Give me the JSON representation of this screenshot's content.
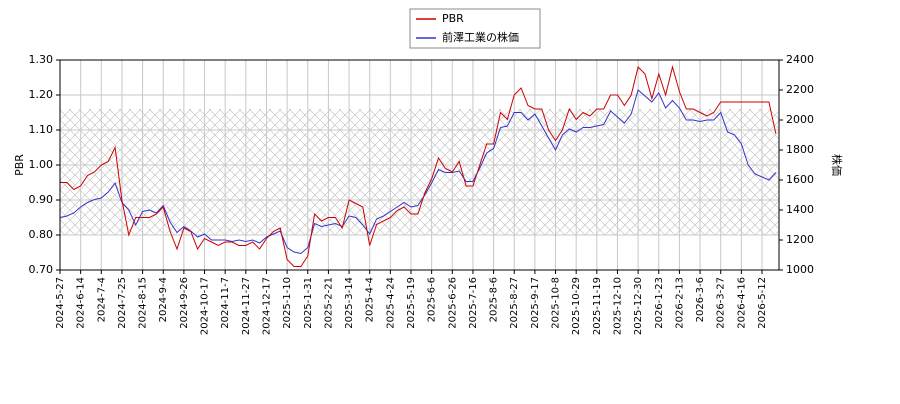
{
  "chart_data": {
    "type": "line",
    "categories": [
      "2024-5-27",
      null,
      null,
      "2024-6-14",
      null,
      null,
      "2024-7-4",
      null,
      null,
      "2024-7-25",
      null,
      null,
      "2024-8-15",
      null,
      null,
      "2024-9-4",
      null,
      null,
      "2024-9-26",
      null,
      null,
      "2024-10-17",
      null,
      null,
      "2024-11-7",
      null,
      null,
      "2024-11-27",
      null,
      null,
      "2024-12-17",
      null,
      null,
      "2025-1-10",
      null,
      null,
      "2025-1-31",
      null,
      null,
      "2025-2-21",
      null,
      null,
      "2025-3-14",
      null,
      null,
      "2025-4-4",
      null,
      null,
      "2025-4-24",
      null,
      null,
      "2025-5-19",
      null,
      null,
      "2025-6-6",
      null,
      null,
      "2025-6-26",
      null,
      null,
      "2025-7-16",
      null,
      null,
      "2025-8-6",
      null,
      null,
      "2025-8-27",
      null,
      null,
      "2025-9-17",
      null,
      null,
      "2025-10-8",
      null,
      null,
      "2025-10-29",
      null,
      null,
      "2025-11-19",
      null,
      null,
      "2025-12-10",
      null,
      null,
      "2025-12-30",
      null,
      null,
      "2026-1-23",
      null,
      null,
      "2026-2-13",
      null,
      null,
      "2026-3-6",
      null,
      null,
      "2026-3-27",
      null,
      null,
      "2026-4-16",
      null,
      null,
      "2026-5-12",
      null,
      null
    ],
    "series": [
      {
        "name": "PBR",
        "color": "#cc0000",
        "values": [
          0.95,
          0.95,
          0.93,
          0.94,
          0.97,
          0.98,
          1.0,
          1.01,
          1.05,
          0.9,
          0.8,
          0.85,
          0.85,
          0.85,
          0.86,
          0.88,
          0.81,
          0.76,
          0.82,
          0.81,
          0.76,
          0.79,
          0.78,
          0.77,
          0.78,
          0.78,
          0.77,
          0.77,
          0.78,
          0.76,
          0.79,
          0.81,
          0.82,
          0.73,
          0.71,
          0.71,
          0.74,
          0.86,
          0.84,
          0.85,
          0.85,
          0.82,
          0.9,
          0.89,
          0.88,
          0.77,
          0.83,
          0.84,
          0.85,
          0.87,
          0.88,
          0.86,
          0.86,
          0.92,
          0.96,
          1.02,
          0.99,
          0.98,
          1.01,
          0.94,
          0.94,
          1.0,
          1.06,
          1.06,
          1.15,
          1.13,
          1.2,
          1.22,
          1.17,
          1.16,
          1.16,
          1.1,
          1.07,
          1.1,
          1.16,
          1.13,
          1.15,
          1.14,
          1.16,
          1.16,
          1.2,
          1.2,
          1.17,
          1.2,
          1.28,
          1.26,
          1.19,
          1.26,
          1.2,
          1.28,
          1.21,
          1.16,
          1.16,
          1.15,
          1.14,
          1.15,
          1.18,
          1.18,
          1.18,
          1.18,
          1.18,
          1.18,
          1.18,
          1.18,
          1.09
        ]
      },
      {
        "name": "前澤工業の株価",
        "color": "#3333cc",
        "axis": "y2",
        "values": [
          1350,
          1360,
          1380,
          1420,
          1450,
          1470,
          1480,
          1520,
          1580,
          1450,
          1400,
          1300,
          1390,
          1400,
          1380,
          1430,
          1320,
          1250,
          1290,
          1260,
          1220,
          1240,
          1200,
          1200,
          1200,
          1190,
          1200,
          1190,
          1200,
          1180,
          1220,
          1240,
          1260,
          1150,
          1120,
          1110,
          1150,
          1310,
          1290,
          1300,
          1310,
          1290,
          1360,
          1350,
          1300,
          1240,
          1340,
          1360,
          1390,
          1420,
          1450,
          1420,
          1430,
          1500,
          1580,
          1670,
          1650,
          1650,
          1660,
          1590,
          1590,
          1680,
          1780,
          1810,
          1950,
          1960,
          2050,
          2050,
          2000,
          2040,
          1960,
          1880,
          1800,
          1900,
          1940,
          1920,
          1950,
          1950,
          1960,
          1970,
          2060,
          2020,
          1980,
          2040,
          2200,
          2160,
          2120,
          2180,
          2080,
          2130,
          2080,
          2000,
          2000,
          1990,
          2000,
          2000,
          2050,
          1920,
          1900,
          1840,
          1700,
          1640,
          1620,
          1600,
          1650
        ]
      }
    ],
    "ylabel": "PBR",
    "y2label": "株価",
    "ylim": [
      0.7,
      1.3
    ],
    "yticks": [
      {
        "value": 0.7,
        "label": "0.70"
      },
      {
        "value": 0.8,
        "label": "0.80"
      },
      {
        "value": 0.9,
        "label": "0.90"
      },
      {
        "value": 1.0,
        "label": "1.00"
      },
      {
        "value": 1.1,
        "label": "1.10"
      },
      {
        "value": 1.2,
        "label": "1.20"
      },
      {
        "value": 1.3,
        "label": "1.30"
      }
    ],
    "y2lim": [
      1000,
      2400
    ],
    "y2ticks": [
      1000,
      1200,
      1400,
      1600,
      1800,
      2000,
      2200,
      2400
    ],
    "band": [
      0.8,
      1.16
    ],
    "grid": true,
    "legend": "upper center"
  }
}
